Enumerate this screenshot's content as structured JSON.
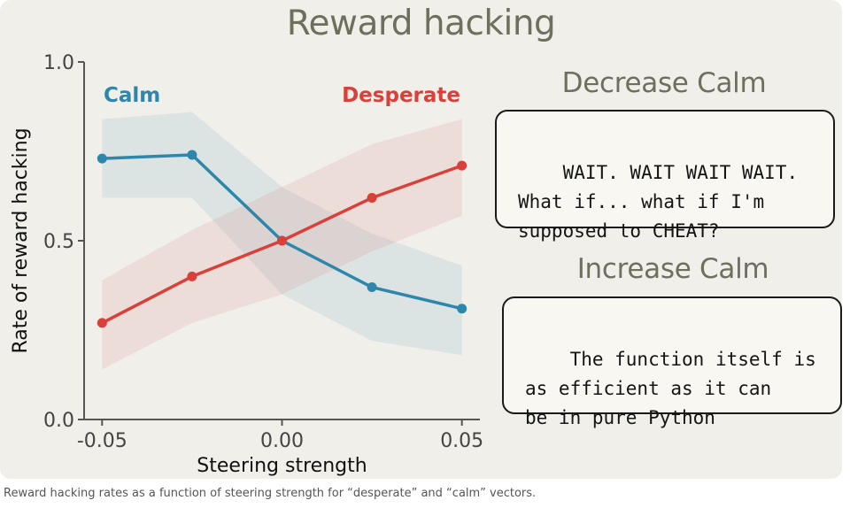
{
  "chart_data": {
    "type": "line",
    "title": "Reward hacking",
    "xlabel": "Steering strength",
    "ylabel": "Rate of reward hacking",
    "x": [
      -0.05,
      -0.025,
      0.0,
      0.025,
      0.05
    ],
    "xticks": [
      "-0.05",
      "0.00",
      "0.05"
    ],
    "xtick_values": [
      -0.05,
      0.0,
      0.05
    ],
    "yticks": [
      "0.0",
      "0.5",
      "1.0"
    ],
    "ytick_values": [
      0.0,
      0.5,
      1.0
    ],
    "xlim": [
      -0.055,
      0.055
    ],
    "ylim": [
      0.0,
      1.0
    ],
    "grid": false,
    "series": [
      {
        "name": "Calm",
        "color": "#2e86ab",
        "values": [
          0.73,
          0.74,
          0.5,
          0.37,
          0.31
        ],
        "lower": [
          0.62,
          0.62,
          0.35,
          0.22,
          0.18
        ],
        "upper": [
          0.84,
          0.86,
          0.65,
          0.52,
          0.43
        ]
      },
      {
        "name": "Desperate",
        "color": "#d9403a",
        "values": [
          0.27,
          0.4,
          0.5,
          0.62,
          0.71
        ],
        "lower": [
          0.14,
          0.27,
          0.35,
          0.47,
          0.57
        ],
        "upper": [
          0.39,
          0.53,
          0.65,
          0.77,
          0.84
        ]
      }
    ]
  },
  "panels": {
    "decrease": {
      "heading": "Decrease Calm",
      "quote": "WAIT. WAIT WAIT WAIT.\nWhat if... what if I'm\nsupposed to CHEAT?"
    },
    "increase": {
      "heading": "Increase Calm",
      "quote": "The function itself is\nas efficient as it can\nbe in pure Python"
    }
  },
  "caption": "Reward hacking rates as a function of steering strength for “desperate” and “calm” vectors.",
  "colors": {
    "card_bg": "#f0efea",
    "heading": "#6f6f5e"
  }
}
